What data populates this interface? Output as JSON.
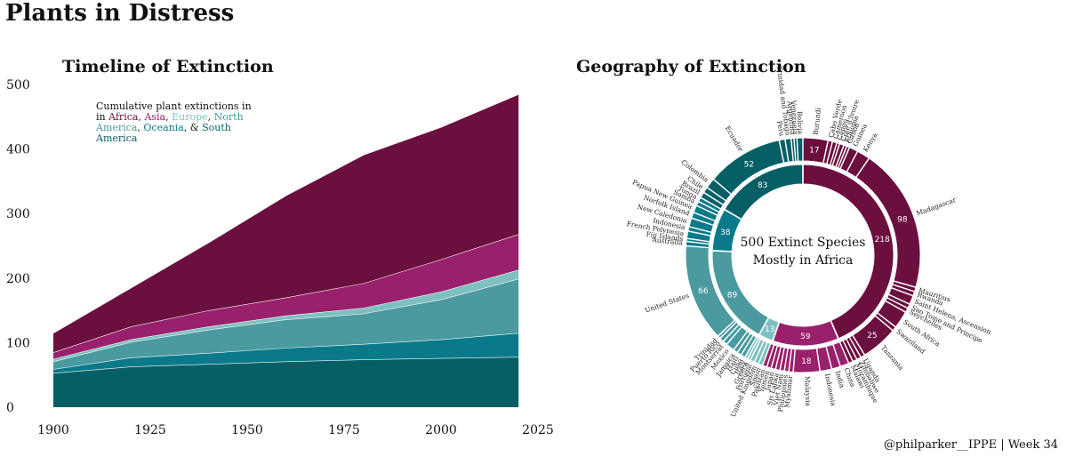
{
  "title": "Plants in Distress",
  "credit": "@philparker__IPPE | Week 34",
  "colors": {
    "Africa": "#6b0f3f",
    "Asia": "#98206c",
    "Europe": "#7ec0bf",
    "North America": "#4a9aa0",
    "Oceania": "#0a7a8a",
    "South America": "#075f66"
  },
  "chart_data": [
    {
      "type": "area",
      "title": "Timeline of Extinction",
      "legend_note": {
        "prefix": "Cumulative plant extinctions in in",
        "sep1": ",",
        "sep2": ",",
        "sep3": ",",
        "sep4": ",",
        "sep5": ", &",
        "suffix": ""
      },
      "xlim": [
        1900,
        2025
      ],
      "ylim": [
        0,
        500
      ],
      "x_ticks": [
        "1900",
        "1925",
        "1950",
        "1975",
        "2000",
        "2025"
      ],
      "y_ticks": [
        "0",
        "100",
        "200",
        "300",
        "400",
        "500"
      ],
      "x": [
        1900,
        1920,
        1940,
        1960,
        1980,
        2000,
        2020
      ],
      "series": [
        {
          "name": "South America",
          "values": [
            53,
            63,
            67,
            71,
            74,
            76,
            78
          ]
        },
        {
          "name": "Oceania",
          "values": [
            6,
            14,
            17,
            21,
            24,
            29,
            37
          ]
        },
        {
          "name": "North America",
          "values": [
            12,
            24,
            36,
            44,
            47,
            62,
            84
          ]
        },
        {
          "name": "Europe",
          "values": [
            4,
            4,
            5,
            6,
            9,
            12,
            14
          ]
        },
        {
          "name": "Asia",
          "values": [
            10,
            20,
            25,
            28,
            38,
            50,
            55
          ]
        },
        {
          "name": "Africa",
          "values": [
            30,
            60,
            105,
            158,
            199,
            205,
            217
          ]
        }
      ]
    },
    {
      "type": "pie",
      "title": "Geography of Extinction",
      "center_label": [
        "500 Extinct Species",
        "Mostly in Africa"
      ],
      "inner_ring": [
        {
          "name": "Africa",
          "value": 218,
          "label": "218"
        },
        {
          "name": "Asia",
          "value": 59,
          "label": "59"
        },
        {
          "name": "Europe",
          "value": 13,
          "label": "13"
        },
        {
          "name": "North America",
          "value": 89,
          "label": "89"
        },
        {
          "name": "Oceania",
          "value": 38,
          "label": "38"
        },
        {
          "name": "South America",
          "value": 83,
          "label": "83"
        }
      ],
      "outer_ring": [
        {
          "name": "Burundi",
          "value": 17,
          "group": "Africa",
          "label": "17"
        },
        {
          "name": "Cabo Verde",
          "value": 3,
          "group": "Africa"
        },
        {
          "name": "Cameroon",
          "value": 3,
          "group": "Africa"
        },
        {
          "name": "Congo",
          "value": 2,
          "group": "Africa"
        },
        {
          "name": "Côte d'Ivoire",
          "value": 3,
          "group": "Africa"
        },
        {
          "name": "Ethiopia",
          "value": 2,
          "group": "Africa"
        },
        {
          "name": "Gabon",
          "value": 2,
          "group": "Africa"
        },
        {
          "name": "Guinea",
          "value": 6,
          "group": "Africa"
        },
        {
          "name": "Kenya",
          "value": 9,
          "group": "Africa"
        },
        {
          "name": "Madagascar",
          "value": 98,
          "group": "Africa",
          "label": "98"
        },
        {
          "name": "Mauritius",
          "value": 3,
          "group": "Africa"
        },
        {
          "name": "Rwanda",
          "value": 3,
          "group": "Africa"
        },
        {
          "name": "Saint Helena, Ascension",
          "value": 6,
          "group": "Africa"
        },
        {
          "name": "Sao Tome and Principe",
          "value": 3,
          "group": "Africa"
        },
        {
          "name": "Seychelles",
          "value": 3,
          "group": "Africa"
        },
        {
          "name": "South Africa",
          "value": 12,
          "group": "Africa"
        },
        {
          "name": "Swaziland",
          "value": 3,
          "group": "Africa"
        },
        {
          "name": "Tanzania",
          "value": 25,
          "group": "Africa",
          "label": "25"
        },
        {
          "name": "Uganda",
          "value": 3,
          "group": "Africa"
        },
        {
          "name": "Zimbabwe",
          "value": 3,
          "group": "Africa"
        },
        {
          "name": "Mozambique",
          "value": 3,
          "group": "Africa"
        },
        {
          "name": "Malawi",
          "value": 3,
          "group": "Africa"
        },
        {
          "name": "China",
          "value": 6,
          "group": "Asia"
        },
        {
          "name": "India",
          "value": 6,
          "group": "Asia"
        },
        {
          "name": "Indonesia",
          "value": 8,
          "group": "Asia"
        },
        {
          "name": "Malaysia",
          "value": 18,
          "group": "Asia",
          "label": "18"
        },
        {
          "name": "Myanmar",
          "value": 3,
          "group": "Asia"
        },
        {
          "name": "Philippines",
          "value": 3,
          "group": "Asia"
        },
        {
          "name": "Viet Nam",
          "value": 3,
          "group": "Asia"
        },
        {
          "name": "Sri Lanka",
          "value": 3,
          "group": "Asia"
        },
        {
          "name": "Japan",
          "value": 3,
          "group": "Asia"
        },
        {
          "name": "Yemen",
          "value": 3,
          "group": "Asia"
        },
        {
          "name": "Pakistan",
          "value": 3,
          "group": "Asia"
        },
        {
          "name": "Spain",
          "value": 3,
          "group": "Europe"
        },
        {
          "name": "United Kingdom",
          "value": 3,
          "group": "Europe"
        },
        {
          "name": "Portugal",
          "value": 3,
          "group": "Europe"
        },
        {
          "name": "Greece",
          "value": 2,
          "group": "Europe"
        },
        {
          "name": "Italy",
          "value": 2,
          "group": "Europe"
        },
        {
          "name": "Cuba",
          "value": 3,
          "group": "North America"
        },
        {
          "name": "Haiti",
          "value": 3,
          "group": "North America"
        },
        {
          "name": "Jamaica",
          "value": 3,
          "group": "North America"
        },
        {
          "name": "Mexico",
          "value": 6,
          "group": "North America"
        },
        {
          "name": "Montserrat",
          "value": 3,
          "group": "North America"
        },
        {
          "name": "Puerto Rico",
          "value": 3,
          "group": "North America"
        },
        {
          "name": "Trinidad",
          "value": 2,
          "group": "North America"
        },
        {
          "name": "United States",
          "value": 66,
          "group": "North America",
          "label": "66"
        },
        {
          "name": "Australia",
          "value": 3,
          "group": "Oceania"
        },
        {
          "name": "Fiji Islands",
          "value": 2,
          "group": "Oceania"
        },
        {
          "name": "French Polynesia",
          "value": 5,
          "group": "Oceania"
        },
        {
          "name": "Indonesia",
          "value": 3,
          "group": "Oceania"
        },
        {
          "name": "New Caledonia",
          "value": 6,
          "group": "Oceania"
        },
        {
          "name": "Norfolk Island",
          "value": 4,
          "group": "Oceania"
        },
        {
          "name": "Papua New Guinea",
          "value": 5,
          "group": "Oceania"
        },
        {
          "name": "Samoa",
          "value": 3,
          "group": "Oceania"
        },
        {
          "name": "Tonga",
          "value": 3,
          "group": "Oceania"
        },
        {
          "name": "Brazil",
          "value": 4,
          "group": "South America"
        },
        {
          "name": "Chile",
          "value": 4,
          "group": "South America"
        },
        {
          "name": "Colombia",
          "value": 7,
          "group": "South America"
        },
        {
          "name": "Ecuador",
          "value": 52,
          "group": "South America",
          "label": "52"
        },
        {
          "name": "Peru",
          "value": 4,
          "group": "South America"
        },
        {
          "name": "Trinidad and Tobago",
          "value": 4,
          "group": "South America"
        },
        {
          "name": "Argentina",
          "value": 2,
          "group": "South America"
        },
        {
          "name": "Venezuela",
          "value": 2,
          "group": "South America"
        },
        {
          "name": "Bolivia",
          "value": 4,
          "group": "South America"
        }
      ]
    }
  ]
}
